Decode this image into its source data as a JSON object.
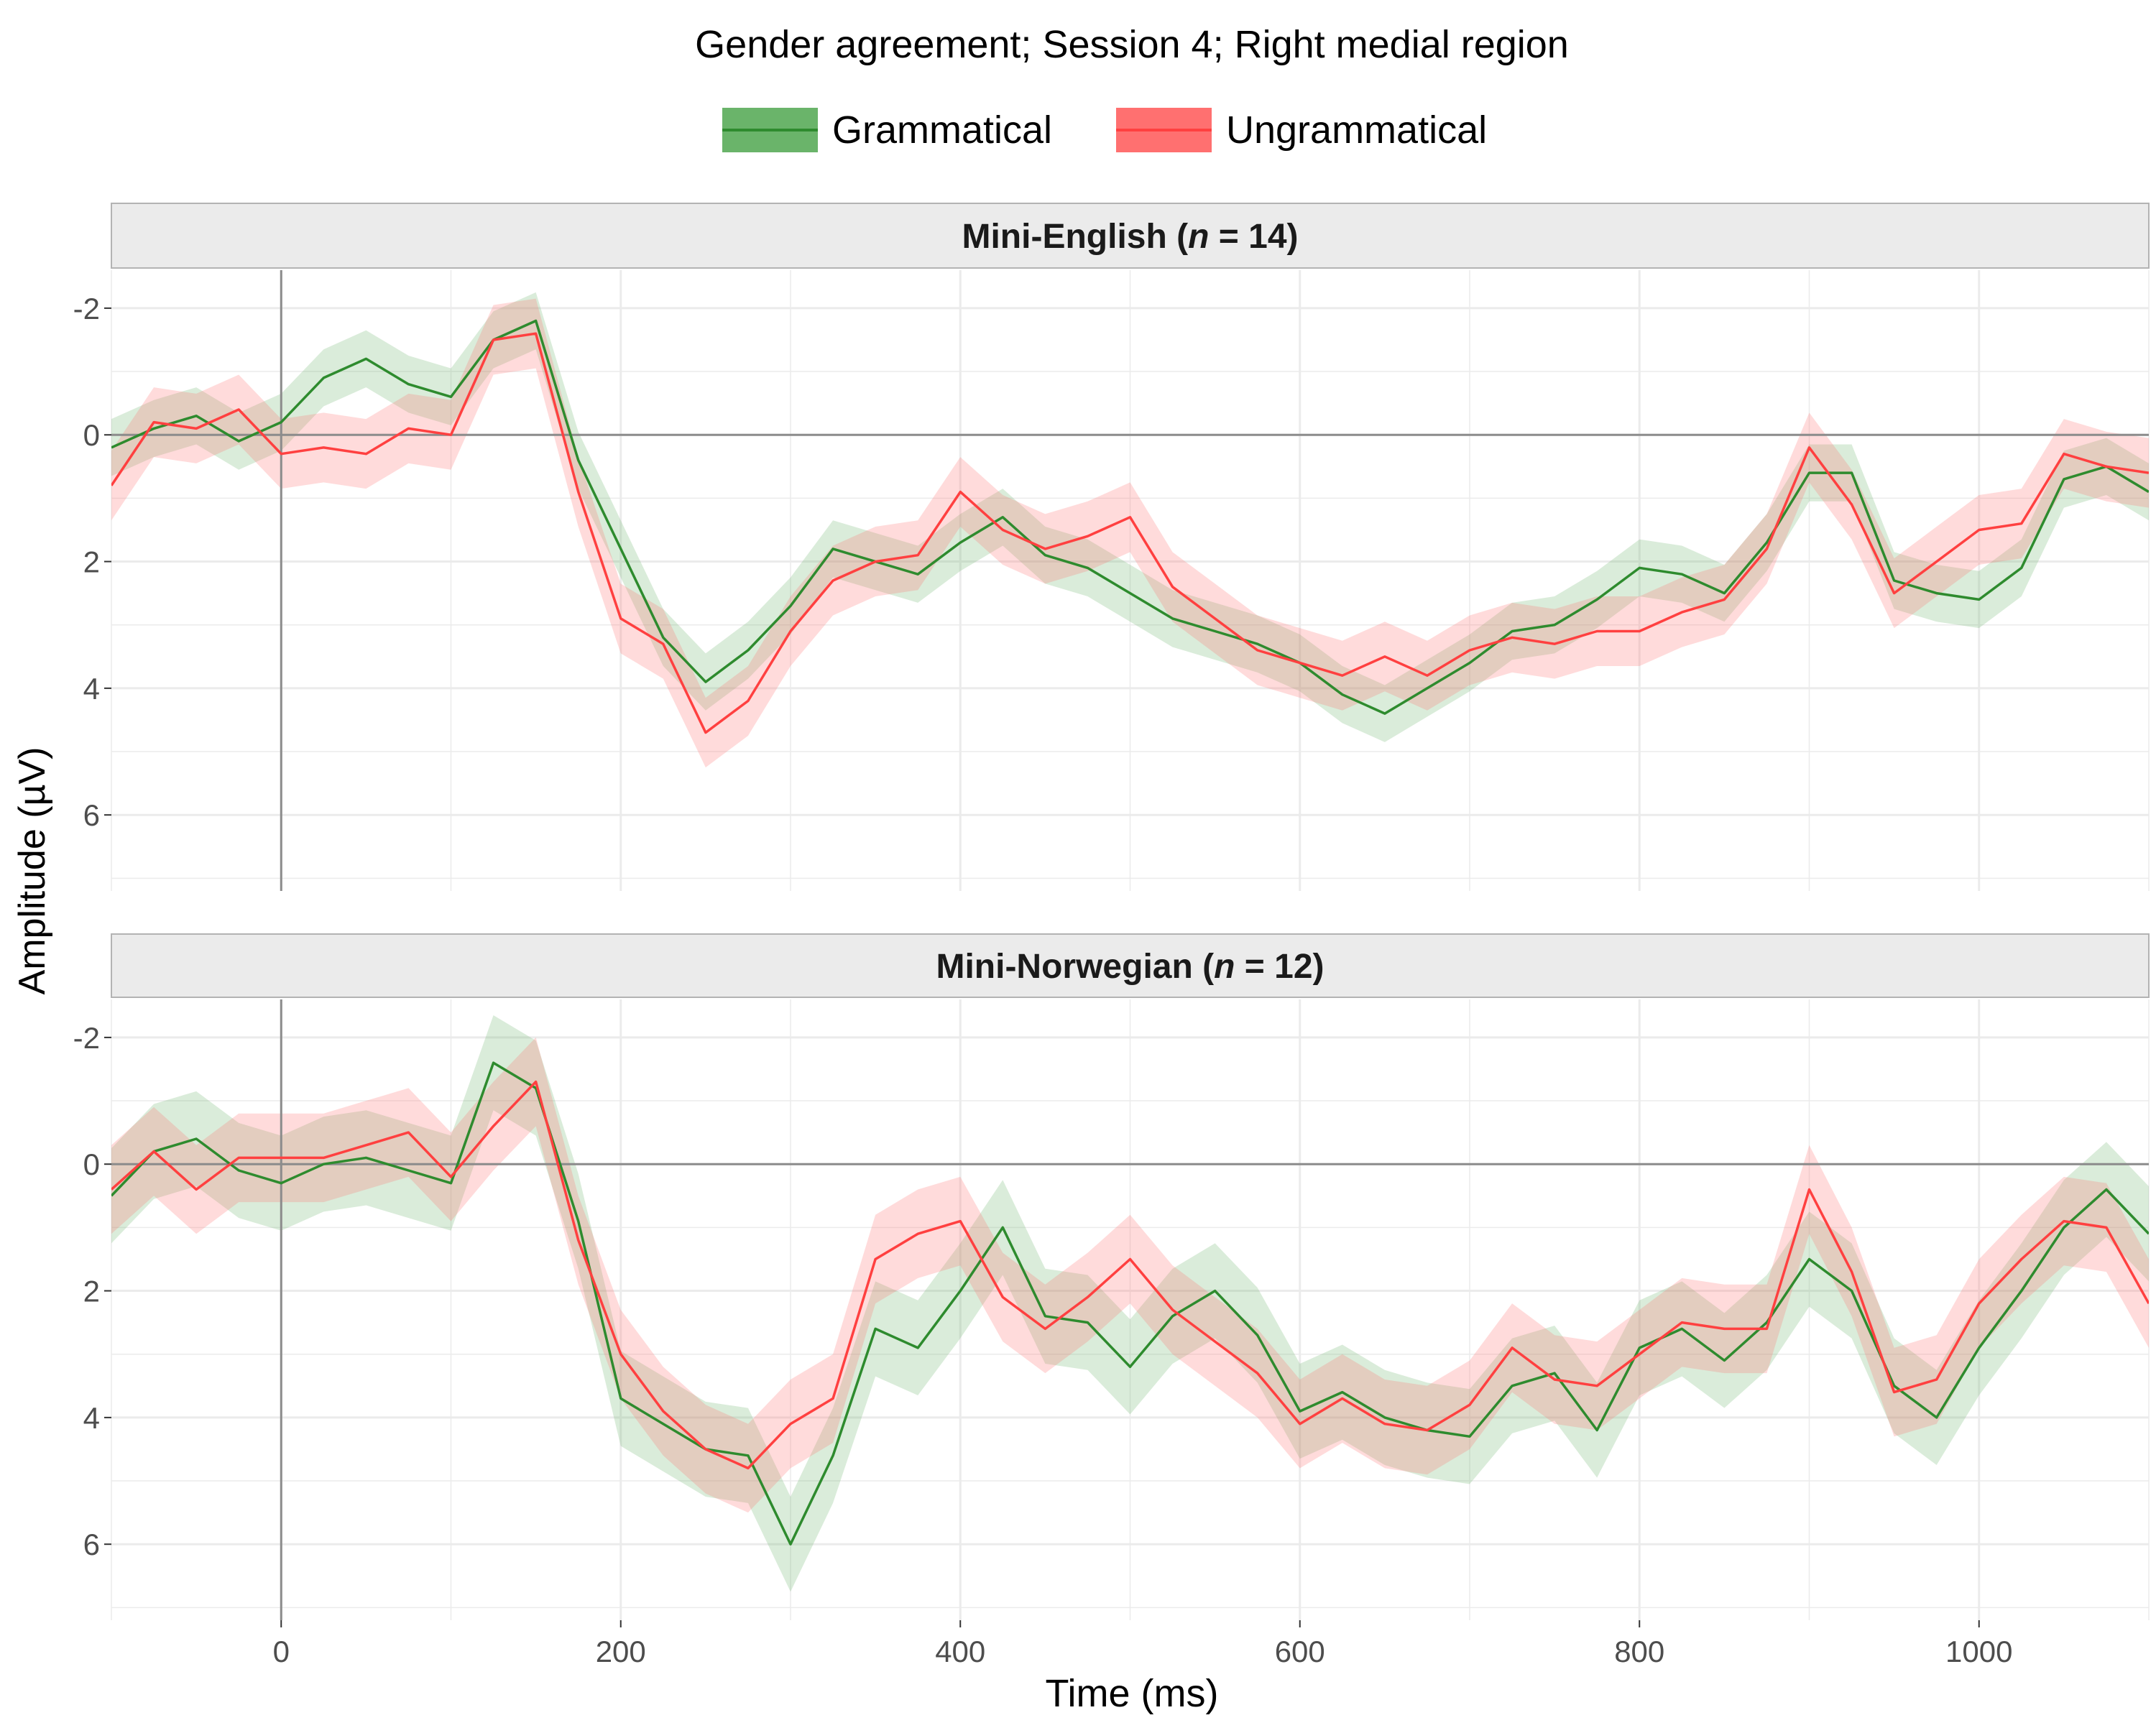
{
  "chart_data": {
    "type": "line",
    "title": "Gender agreement; Session 4; Right medial region",
    "xlabel": "Time (ms)",
    "ylabel": "Amplitude (µV)",
    "xlim": [
      -100,
      1100
    ],
    "ylim": [
      -2.6,
      7.2
    ],
    "y_reversed": true,
    "x_ticks": [
      0,
      200,
      400,
      600,
      800,
      1000
    ],
    "y_ticks": [
      -2,
      0,
      2,
      4,
      6
    ],
    "grid": true,
    "legend_position": "top",
    "colors": {
      "Grammatical": "#2e8b2e",
      "Ungrammatical": "#ff4040",
      "Grammatical_fill": "#6ab46a",
      "Ungrammatical_fill": "#ff7070"
    },
    "x": [
      -100,
      -75,
      -50,
      -25,
      0,
      25,
      50,
      75,
      100,
      125,
      150,
      175,
      200,
      225,
      250,
      275,
      300,
      325,
      350,
      375,
      400,
      425,
      450,
      475,
      500,
      525,
      550,
      575,
      600,
      625,
      650,
      675,
      700,
      725,
      750,
      775,
      800,
      825,
      850,
      875,
      900,
      925,
      950,
      975,
      1000,
      1025,
      1050,
      1075,
      1100
    ],
    "panels": [
      {
        "strip_prefix": "Mini-English (",
        "strip_n": "n",
        "strip_suffix": " = 14)",
        "series": [
          {
            "name": "Grammatical",
            "values": [
              0.2,
              -0.1,
              -0.3,
              0.1,
              -0.2,
              -0.9,
              -1.2,
              -0.8,
              -0.6,
              -1.5,
              -1.8,
              0.4,
              1.8,
              3.2,
              3.9,
              3.4,
              2.7,
              1.8,
              2.0,
              2.2,
              1.7,
              1.3,
              1.9,
              2.1,
              2.5,
              2.9,
              3.1,
              3.3,
              3.6,
              4.1,
              4.4,
              4.0,
              3.6,
              3.1,
              3.0,
              2.6,
              2.1,
              2.2,
              2.5,
              1.7,
              0.6,
              0.6,
              2.3,
              2.5,
              2.6,
              2.1,
              0.7,
              0.5,
              0.9
            ],
            "ci": 0.45
          },
          {
            "name": "Ungrammatical",
            "values": [
              0.8,
              -0.2,
              -0.1,
              -0.4,
              0.3,
              0.2,
              0.3,
              -0.1,
              0.0,
              -1.5,
              -1.6,
              0.9,
              2.9,
              3.3,
              4.7,
              4.2,
              3.1,
              2.3,
              2.0,
              1.9,
              0.9,
              1.5,
              1.8,
              1.6,
              1.3,
              2.4,
              2.9,
              3.4,
              3.6,
              3.8,
              3.5,
              3.8,
              3.4,
              3.2,
              3.3,
              3.1,
              3.1,
              2.8,
              2.6,
              1.8,
              0.2,
              1.1,
              2.5,
              2.0,
              1.5,
              1.4,
              0.3,
              0.5,
              0.6
            ],
            "ci": 0.55
          }
        ]
      },
      {
        "strip_prefix": "Mini-Norwegian (",
        "strip_n": "n",
        "strip_suffix": " = 12)",
        "series": [
          {
            "name": "Grammatical",
            "values": [
              0.5,
              -0.2,
              -0.4,
              0.1,
              0.3,
              0.0,
              -0.1,
              0.1,
              0.3,
              -1.6,
              -1.2,
              0.9,
              3.7,
              4.1,
              4.5,
              4.6,
              6.0,
              4.6,
              2.6,
              2.9,
              2.0,
              1.0,
              2.4,
              2.5,
              3.2,
              2.4,
              2.0,
              2.7,
              3.9,
              3.6,
              4.0,
              4.2,
              4.3,
              3.5,
              3.3,
              4.2,
              2.9,
              2.6,
              3.1,
              2.5,
              1.5,
              2.0,
              3.5,
              4.0,
              2.9,
              2.0,
              1.0,
              0.4,
              1.1
            ],
            "ci": 0.75
          },
          {
            "name": "Ungrammatical",
            "values": [
              0.4,
              -0.2,
              0.4,
              -0.1,
              -0.1,
              -0.1,
              -0.3,
              -0.5,
              0.2,
              -0.6,
              -1.3,
              1.2,
              3.0,
              3.9,
              4.5,
              4.8,
              4.1,
              3.7,
              1.5,
              1.1,
              0.9,
              2.1,
              2.6,
              2.1,
              1.5,
              2.3,
              2.8,
              3.3,
              4.1,
              3.7,
              4.1,
              4.2,
              3.8,
              2.9,
              3.4,
              3.5,
              3.0,
              2.5,
              2.6,
              2.6,
              0.4,
              1.7,
              3.6,
              3.4,
              2.2,
              1.5,
              0.9,
              1.0,
              2.2
            ],
            "ci": 0.7
          }
        ]
      }
    ]
  }
}
